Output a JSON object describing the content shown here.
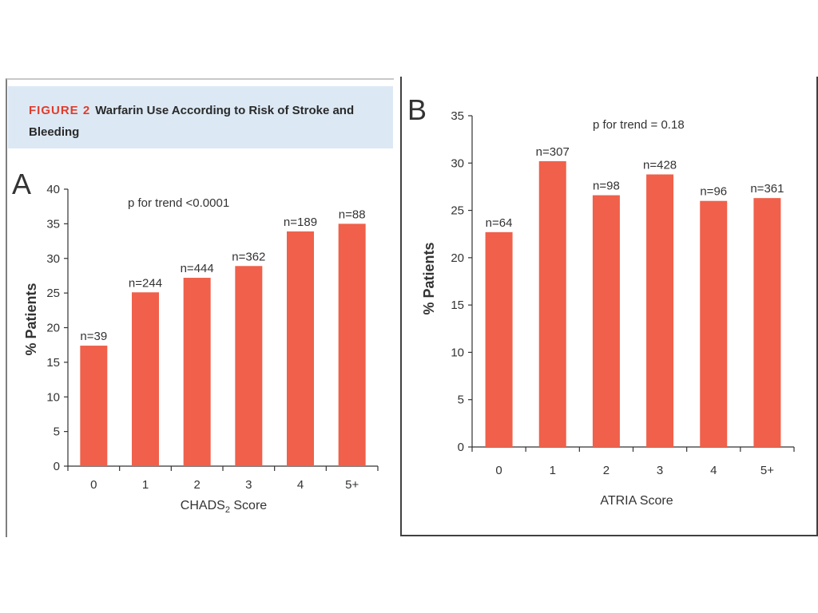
{
  "figure": {
    "label": "FIGURE 2",
    "title": "Warfarin Use According to Risk of Stroke and Bleeding"
  },
  "colors": {
    "bar": "#f0604a",
    "header_bg": "#dce9f5",
    "label_accent": "#e03c2c"
  },
  "chart_data": [
    {
      "panel": "A",
      "type": "bar",
      "categories": [
        "0",
        "1",
        "2",
        "3",
        "4",
        "5+"
      ],
      "values": [
        17.4,
        25.1,
        27.2,
        28.9,
        33.9,
        35.0
      ],
      "bar_labels": [
        "n=39",
        "n=244",
        "n=444",
        "n=362",
        "n=189",
        "n=88"
      ],
      "annotation": "p for trend <0.0001",
      "xlabel": "CHADS",
      "xlabel_sub": "2",
      "xlabel_suffix": " Score",
      "ylabel": "% Patients",
      "ylim": [
        0,
        40
      ],
      "yticks": [
        0,
        5,
        10,
        15,
        20,
        25,
        30,
        35,
        40
      ],
      "grid": false
    },
    {
      "panel": "B",
      "type": "bar",
      "categories": [
        "0",
        "1",
        "2",
        "3",
        "4",
        "5+"
      ],
      "values": [
        22.7,
        30.2,
        26.6,
        28.8,
        26.0,
        26.3
      ],
      "bar_labels": [
        "n=64",
        "n=307",
        "n=98",
        "n=428",
        "n=96",
        "n=361"
      ],
      "annotation": "p for trend = 0.18",
      "xlabel": "ATRIA Score",
      "ylabel": "% Patients",
      "ylim": [
        0,
        35
      ],
      "yticks": [
        0,
        5,
        10,
        15,
        20,
        25,
        30,
        35
      ],
      "grid": false
    }
  ]
}
